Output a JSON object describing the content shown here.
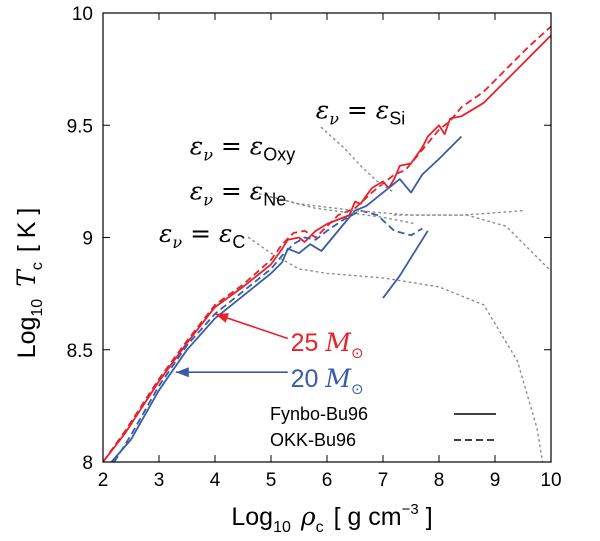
{
  "chart_data": {
    "type": "line",
    "title": "",
    "xlabel": {
      "prefix": "Log",
      "sub": "10",
      "sym": "ρ",
      "symsub": "c",
      "units": "[ g cm",
      "exp": "−3",
      "close": " ]"
    },
    "ylabel": {
      "prefix": "Log",
      "sub": "10",
      "sym": "T",
      "symsub": "c",
      "units": "[ K ]"
    },
    "xlim": [
      2,
      10
    ],
    "ylim": [
      8,
      10
    ],
    "xticks": [
      "2",
      "3",
      "4",
      "5",
      "6",
      "7",
      "8",
      "9",
      "10"
    ],
    "yticks": [
      "8",
      "8.5",
      "9",
      "9.5",
      "10"
    ],
    "colors": {
      "red": "#e8212b",
      "blue": "#3b5ba8",
      "gray": "#8a8a8a",
      "axis": "#000000"
    },
    "series": [
      {
        "name": "25 M☉",
        "color": "red",
        "style": "solid",
        "x": [
          2.0,
          2.4,
          3.0,
          3.5,
          4.0,
          4.5,
          5.0,
          5.2,
          5.3,
          5.5,
          5.6,
          5.8,
          6.0,
          6.2,
          6.4,
          6.5,
          6.6,
          6.8,
          7.0,
          7.1,
          7.2,
          7.3,
          7.5,
          7.7,
          7.8,
          8.0,
          8.1,
          8.2,
          8.4,
          8.8,
          9.2,
          9.6,
          10.0
        ],
        "y": [
          8.0,
          8.13,
          8.36,
          8.53,
          8.69,
          8.78,
          8.88,
          8.95,
          8.99,
          9.0,
          8.98,
          9.03,
          9.06,
          9.08,
          9.1,
          9.16,
          9.15,
          9.22,
          9.25,
          9.22,
          9.26,
          9.32,
          9.33,
          9.4,
          9.45,
          9.5,
          9.46,
          9.53,
          9.54,
          9.6,
          9.7,
          9.8,
          9.9
        ]
      },
      {
        "name": "25 M☉",
        "color": "red",
        "style": "dashed",
        "x": [
          2.0,
          2.4,
          3.0,
          3.5,
          4.0,
          4.5,
          5.0,
          5.2,
          5.4,
          5.6,
          5.8,
          6.0,
          6.2,
          6.5,
          6.8,
          7.0,
          7.2,
          7.4,
          7.6,
          7.8,
          8.0,
          8.2,
          8.4,
          8.8,
          9.2,
          9.6,
          10.0
        ],
        "y": [
          8.0,
          8.14,
          8.37,
          8.54,
          8.7,
          8.79,
          8.9,
          8.97,
          9.02,
          9.03,
          9.0,
          9.05,
          9.1,
          9.13,
          9.2,
          9.24,
          9.28,
          9.3,
          9.36,
          9.42,
          9.48,
          9.52,
          9.58,
          9.65,
          9.75,
          9.85,
          9.94
        ]
      },
      {
        "name": "20 M☉",
        "color": "blue",
        "style": "solid",
        "x": [
          2.15,
          2.5,
          3.0,
          3.5,
          4.0,
          4.5,
          5.0,
          5.2,
          5.3,
          5.5,
          5.7,
          5.9,
          6.1,
          6.3,
          6.5,
          6.7,
          6.9,
          7.1,
          7.3,
          7.5,
          7.7,
          8.0,
          8.4
        ],
        "y": [
          8.0,
          8.1,
          8.32,
          8.5,
          8.64,
          8.74,
          8.84,
          8.89,
          8.95,
          8.93,
          8.97,
          8.94,
          9.0,
          9.06,
          9.12,
          9.14,
          9.18,
          9.22,
          9.26,
          9.2,
          9.28,
          9.35,
          9.45
        ]
      },
      {
        "name": "20 M☉",
        "color": "blue",
        "style": "dashed",
        "x": [
          2.2,
          2.5,
          3.0,
          3.5,
          4.0,
          4.5,
          5.0,
          5.2,
          5.4,
          5.6,
          5.8,
          6.0,
          6.3,
          6.6,
          6.9,
          7.2,
          7.5,
          7.7
        ],
        "y": [
          8.0,
          8.12,
          8.34,
          8.52,
          8.66,
          8.76,
          8.86,
          8.92,
          8.97,
          9.0,
          8.99,
          9.03,
          9.08,
          9.12,
          9.1,
          9.03,
          9.01,
          9.04
        ]
      },
      {
        "name": "",
        "color": "blue",
        "style": "solid",
        "x": [
          7.0,
          7.3,
          7.6,
          7.8
        ],
        "y": [
          8.73,
          8.83,
          8.95,
          9.03
        ]
      },
      {
        "name": "",
        "color": "gray",
        "style": "dotted",
        "x": [
          5.9,
          6.3,
          6.6,
          6.9,
          7.2
        ],
        "y": [
          9.49,
          9.4,
          9.32,
          9.25,
          9.2
        ]
      },
      {
        "name": "",
        "color": "gray",
        "style": "dotted",
        "x": [
          5.0,
          5.8,
          6.4,
          7.0,
          7.6
        ],
        "y": [
          9.18,
          9.13,
          9.11,
          9.09,
          9.06
        ]
      },
      {
        "name": "",
        "color": "gray",
        "style": "dotted",
        "x": [
          4.6,
          5.0,
          5.5,
          6.0,
          7.0,
          8.0,
          8.8,
          9.4,
          9.75,
          9.85
        ],
        "y": [
          9.0,
          8.93,
          8.86,
          8.84,
          8.82,
          8.78,
          8.7,
          8.45,
          8.15,
          8.0
        ]
      },
      {
        "name": "",
        "color": "gray",
        "style": "dotted",
        "x": [
          4.7,
          5.5,
          6.5,
          7.5,
          8.5,
          9.2,
          10.0
        ],
        "y": [
          9.2,
          9.15,
          9.12,
          9.1,
          9.1,
          9.05,
          8.85
        ]
      },
      {
        "name": "",
        "color": "gray",
        "style": "dotted",
        "x": [
          7.2,
          7.8,
          8.4,
          9.0,
          9.5
        ],
        "y": [
          9.1,
          9.1,
          9.1,
          9.11,
          9.12
        ]
      }
    ],
    "annotations": [
      {
        "base": "ε",
        "sub": "ν",
        "eq": " = ",
        "base2": "ε",
        "sub2": "Si",
        "x": 5.8,
        "y": 9.53
      },
      {
        "base": "ε",
        "sub": "ν",
        "eq": " = ",
        "base2": "ε",
        "sub2": "Oxy",
        "x": 3.55,
        "y": 9.37
      },
      {
        "base": "ε",
        "sub": "ν",
        "eq": " = ",
        "base2": "ε",
        "sub2": "Ne",
        "x": 3.55,
        "y": 9.17
      },
      {
        "base": "ε",
        "sub": "ν",
        "eq": " = ",
        "base2": "ε",
        "sub2": "C",
        "x": 3.0,
        "y": 8.98
      }
    ],
    "labels": [
      {
        "text": "25 ",
        "sym": "M",
        "mark": "⊙",
        "color": "red",
        "x": 5.35,
        "y": 8.53
      },
      {
        "text": "20 ",
        "sym": "M",
        "mark": "⊙",
        "color": "blue",
        "x": 5.35,
        "y": 8.37
      }
    ],
    "arrows": [
      {
        "color": "red",
        "from": [
          5.3,
          8.55
        ],
        "to": [
          4.0,
          8.66
        ]
      },
      {
        "color": "blue",
        "from": [
          5.3,
          8.4
        ],
        "to": [
          3.3,
          8.4
        ]
      }
    ],
    "legend": {
      "position": "bottom-right",
      "entries": [
        {
          "label": "Fynbo-Bu96",
          "style": "solid"
        },
        {
          "label": "OKK-Bu96",
          "style": "dashed"
        }
      ]
    },
    "grid": false
  }
}
